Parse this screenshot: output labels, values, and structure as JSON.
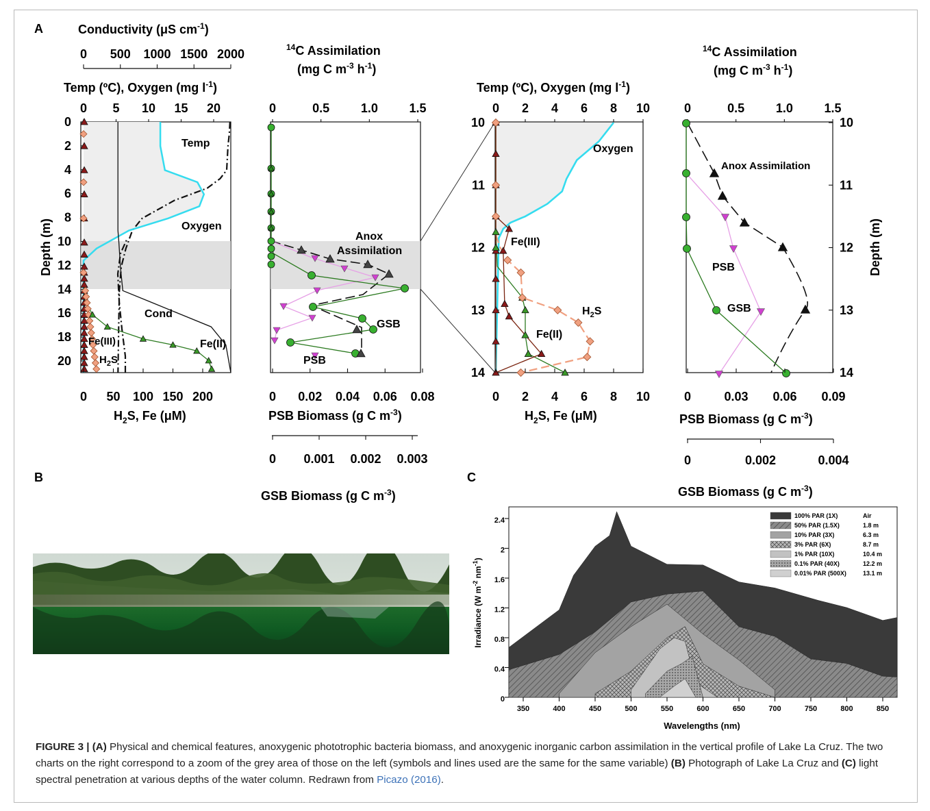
{
  "panel_letters": {
    "a": "A",
    "b": "B",
    "c": "C"
  },
  "panelA": {
    "profile_left": {
      "cond_title": "Conductivity (μS cm",
      "cond_title_sup": "-1",
      "cond_title_close": ")",
      "cond_ticks": [
        "0",
        "500",
        "1000",
        "1500",
        "2000"
      ],
      "temp_title": "Temp (ºC), Oxygen (mg l",
      "temp_title_sup": "-1",
      "temp_title_close": ")",
      "temp_ticks": [
        "0",
        "5",
        "10",
        "15",
        "20"
      ],
      "depth_label": "Depth (m)",
      "depth_ticks": [
        "0",
        "2",
        "4",
        "6",
        "8",
        "10",
        "12",
        "14",
        "16",
        "18",
        "20"
      ],
      "bottom_ticks": [
        "0",
        "50",
        "100",
        "150",
        "200"
      ],
      "bottom_title_a": "H",
      "bottom_title_sub": "2",
      "bottom_title_b": "S,  Fe (μM)",
      "labels": {
        "temp": "Temp",
        "oxygen": "Oxygen",
        "cond": "Cond",
        "fe3": "Fe(III)",
        "h2s_a": "H",
        "h2s_sub": "2",
        "h2s_b": "S",
        "fe2": "Fe(II)"
      }
    },
    "assim_left": {
      "title_1a": "14",
      "title_1b": "C Assimilation",
      "title_2a": "(mg C m",
      "title_2sup": "-3",
      "title_2b": " h",
      "title_2sup2": "-1",
      "title_2c": ")",
      "top_ticks": [
        "0",
        "0.5",
        "1.0",
        "1.5"
      ],
      "psb_ticks": [
        "0",
        "0.02",
        "0.04",
        "0.06",
        "0.08"
      ],
      "psb_title": "PSB Biomass (g C m",
      "psb_sup": "-3",
      "psb_close": ")",
      "gsb_ticks": [
        "0",
        "0.001",
        "0.002",
        "0.003"
      ],
      "gsb_title": "GSB Biomass (g C m",
      "gsb_sup": "-3",
      "gsb_close": ")",
      "labels": {
        "anox1": "Anox",
        "anox2": "Assimilation",
        "gsb": "GSB",
        "psb": "PSB"
      }
    },
    "profile_zoom": {
      "title": "Temp (ºC), Oxygen (mg l",
      "title_sup": "-1",
      "title_close": ")",
      "top_ticks": [
        "0",
        "2",
        "4",
        "6",
        "8",
        "10"
      ],
      "depth_ticks": [
        "10",
        "11",
        "12",
        "13",
        "14"
      ],
      "bottom_ticks": [
        "0",
        "2",
        "4",
        "6",
        "8",
        "10"
      ],
      "bottom_title_a": "H",
      "bottom_title_sub": "2",
      "bottom_title_b": "S,  Fe (μM)",
      "labels": {
        "oxygen": "Oxygen",
        "fe3": "Fe(III)",
        "h2s_a": "H",
        "h2s_sub": "2",
        "h2s_b": "S",
        "fe2": "Fe(II)"
      }
    },
    "assim_zoom": {
      "title_1a": "14",
      "title_1b": "C Assimilation",
      "title_2a": "(mg C m",
      "title_2sup": "-3",
      "title_2b": " h",
      "title_2sup2": "-1",
      "title_2c": ")",
      "top_ticks": [
        "0",
        "0.5",
        "1.0",
        "1.5"
      ],
      "depth_ticks": [
        "10",
        "11",
        "12",
        "13",
        "14"
      ],
      "depth_label": "Depth (m)",
      "psb_ticks": [
        "0",
        "0.03",
        "0.06",
        "0.09"
      ],
      "psb_title": "PSB Biomass (g C m",
      "psb_sup": "-3",
      "psb_close": ")",
      "gsb_ticks": [
        "0",
        "0.002",
        "0.004"
      ],
      "gsb_title": "GSB Biomass (g C m",
      "gsb_sup": "-3",
      "gsb_close": ")",
      "labels": {
        "anox": "Anox Assimilation",
        "psb": "PSB",
        "gsb": "GSB"
      }
    }
  },
  "panelC": {
    "y_label_a": "Irradiance (W m",
    "y_sup1": "-2",
    "y_label_b": " nm",
    "y_sup2": "-1",
    "y_label_c": ")",
    "x_label": "Wavelengths (nm)",
    "y_ticks": [
      "0",
      "0.4",
      "0.8",
      "1.2",
      "1.6",
      "2",
      "2.4"
    ],
    "x_ticks": [
      "350",
      "400",
      "450",
      "500",
      "550",
      "600",
      "650",
      "700",
      "750",
      "800",
      "850"
    ],
    "legend": [
      {
        "name": "100% PAR (1X)",
        "depth": "Air",
        "color": "#3a3a3a"
      },
      {
        "name": "50% PAR (1.5X)",
        "depth": "1.8 m",
        "color": "#777777"
      },
      {
        "name": "10% PAR (3X)",
        "depth": "6.3 m",
        "color": "#a3a3a3"
      },
      {
        "name": "3% PAR (6X)",
        "depth": "8.7 m",
        "color": "#8e8e8e"
      },
      {
        "name": "1% PAR (10X)",
        "depth": "10.4 m",
        "color": "#c2c2c2"
      },
      {
        "name": "0.1% PAR (40X)",
        "depth": "12.2 m",
        "color": "#9a9a9a"
      },
      {
        "name": "0.01% PAR (500X)",
        "depth": "13.1 m",
        "color": "#d0d0d0"
      }
    ]
  },
  "chart_data": [
    {
      "type": "line",
      "ylabel": "Depth (m)",
      "ylim": [
        0,
        20.8
      ],
      "series": [
        {
          "name": "Temp",
          "x": [
            22.5,
            22.4,
            22.2,
            22.0,
            21.0,
            19.0,
            14.0,
            9.0,
            7.5,
            6.5,
            5.8,
            5.5,
            5.4,
            5.3
          ],
          "y": [
            0,
            1,
            2,
            4,
            4.7,
            5.5,
            6.5,
            8.0,
            9.0,
            10.5,
            12,
            14,
            17,
            20.8
          ]
        },
        {
          "name": "Oxygen",
          "x": [
            11.8,
            11.8,
            11.8,
            12.5,
            17.5,
            18.5,
            17.8,
            13.0,
            7.0,
            2.0,
            0.0,
            0.0
          ],
          "y": [
            0,
            1,
            2,
            4,
            5,
            6,
            7,
            8,
            9,
            10.5,
            11.5,
            20.8
          ]
        },
        {
          "name": "Cond",
          "x": [
            70,
            70,
            70,
            72,
            75,
            80,
            140,
            200,
            260,
            290,
            300
          ],
          "y": [
            0,
            5,
            9,
            10,
            12,
            14,
            15,
            16,
            17,
            18.5,
            20.8
          ]
        },
        {
          "name": "Fe(II)",
          "x": [
            0,
            5,
            15,
            40,
            100,
            150,
            190,
            210,
            215
          ],
          "y": [
            14,
            15,
            16,
            17,
            18,
            18.5,
            19,
            19.8,
            20.5
          ]
        },
        {
          "name": "H2S",
          "x": [
            0,
            0,
            5,
            10,
            15,
            17,
            19,
            20
          ],
          "y": [
            0,
            12,
            14,
            15,
            16,
            17,
            19,
            20.5
          ]
        }
      ]
    },
    {
      "type": "line",
      "ylabel": "Depth (m)",
      "ylim": [
        10,
        14
      ],
      "series": [
        {
          "name": "Oxygen",
          "x": [
            8.0,
            7.0,
            5.5,
            4.8,
            4.5,
            3.5,
            2.0,
            1.0,
            0.5,
            0.2,
            0
          ],
          "y": [
            10,
            10.3,
            10.6,
            10.9,
            11.1,
            11.3,
            11.5,
            11.6,
            11.7,
            11.85,
            14
          ]
        },
        {
          "name": "H2S",
          "x": [
            0,
            0,
            0.3,
            0.8,
            1.7,
            1.8,
            4.2,
            5.6,
            6.4,
            6.2,
            1.7
          ],
          "y": [
            10,
            11.8,
            12.0,
            12.2,
            12.4,
            12.8,
            13.0,
            13.2,
            13.5,
            13.75,
            14
          ]
        },
        {
          "name": "Fe(II)",
          "x": [
            0,
            0,
            0.1,
            1.8,
            2.0,
            2.0,
            2.2,
            4.7
          ],
          "y": [
            10,
            11.75,
            12.3,
            12.8,
            13.0,
            13.4,
            13.7,
            14
          ]
        },
        {
          "name": "Fe(III)",
          "x": [
            0,
            0,
            0.9,
            0.5,
            0.6,
            0.9,
            3.1,
            0
          ],
          "y": [
            10,
            11.5,
            11.7,
            12.05,
            12.9,
            13.1,
            13.7,
            14
          ]
        }
      ]
    },
    {
      "type": "line",
      "ylabel": "Depth (m)",
      "ylim": [
        10,
        14
      ],
      "series": [
        {
          "name": "Anox Assimilation",
          "x": [
            0,
            0.3,
            0.37,
            0.55,
            0.95,
            1.2,
            0.85
          ],
          "y": [
            10,
            10.8,
            11.2,
            11.6,
            12.0,
            13.0,
            14
          ]
        },
        {
          "name": "PSB",
          "x": [
            0,
            0.018,
            0.028,
            0.057,
            0.02
          ],
          "y": [
            10.8,
            11.5,
            12.0,
            13.0,
            14
          ]
        },
        {
          "name": "GSB",
          "x": [
            0,
            0,
            0,
            0.0008,
            0.0027
          ],
          "y": [
            10,
            11.5,
            12.0,
            13.0,
            14
          ]
        }
      ]
    },
    {
      "type": "area",
      "xlabel": "Wavelengths (nm)",
      "xlim": [
        330,
        870
      ],
      "ylim": [
        0,
        2.4
      ],
      "series": [
        {
          "name": "100% PAR (1X)",
          "x": [
            330,
            400,
            420,
            450,
            470,
            480,
            500,
            550,
            600,
            650,
            700,
            760,
            800,
            850,
            870
          ],
          "values": [
            0.6,
            1.1,
            1.65,
            2.05,
            2.1,
            2.5,
            1.95,
            1.8,
            1.7,
            1.55,
            1.4,
            1.3,
            1.15,
            1.0,
            1.0
          ]
        },
        {
          "name": "50% PAR (1.5X)",
          "x": [
            330,
            400,
            450,
            500,
            550,
            600,
            650,
            700,
            750,
            800,
            850,
            870
          ],
          "values": [
            0.3,
            0.5,
            0.9,
            1.2,
            1.4,
            1.35,
            0.95,
            0.75,
            0.5,
            0.4,
            0.25,
            0.2
          ]
        },
        {
          "name": "10% PAR (3X)",
          "x": [
            400,
            450,
            500,
            550,
            600,
            650,
            700
          ],
          "values": [
            0.05,
            0.6,
            0.95,
            1.25,
            0.85,
            0.5,
            0.1
          ]
        },
        {
          "name": "3% PAR (6X)",
          "x": [
            450,
            500,
            550,
            575,
            600,
            650,
            700
          ],
          "values": [
            0.05,
            0.35,
            0.8,
            0.95,
            0.45,
            0.15,
            0.0
          ]
        },
        {
          "name": "1% PAR (10X)",
          "x": [
            500,
            540,
            560,
            575,
            590,
            620
          ],
          "values": [
            0.1,
            0.65,
            0.8,
            0.75,
            0.2,
            0.0
          ]
        },
        {
          "name": "0.1% PAR (40X)",
          "x": [
            520,
            550,
            570,
            585,
            600
          ],
          "values": [
            0.05,
            0.35,
            0.45,
            0.55,
            0.0
          ]
        },
        {
          "name": "0.01% PAR (500X)",
          "x": [
            540,
            560,
            575,
            590
          ],
          "values": [
            0.0,
            0.15,
            0.25,
            0.0
          ]
        }
      ]
    }
  ],
  "caption": {
    "figure": "FIGURE 3 | ",
    "a_label": "(A)",
    "a_text": " Physical and chemical features, anoxygenic phototrophic bacteria biomass, and anoxygenic inorganic carbon assimilation in the vertical profile of Lake La Cruz. The two charts on the right correspond to a zoom of the grey area of those on the left (symbols and lines used are the same for the same variable)",
    "b_label": "(B)",
    "b_text": " Photograph of Lake La Cruz and ",
    "c_label": "(C)",
    "c_text": " light spectral penetration at various depths of the water column. Redrawn from ",
    "citation": "Picazo (2016)",
    "end": "."
  }
}
